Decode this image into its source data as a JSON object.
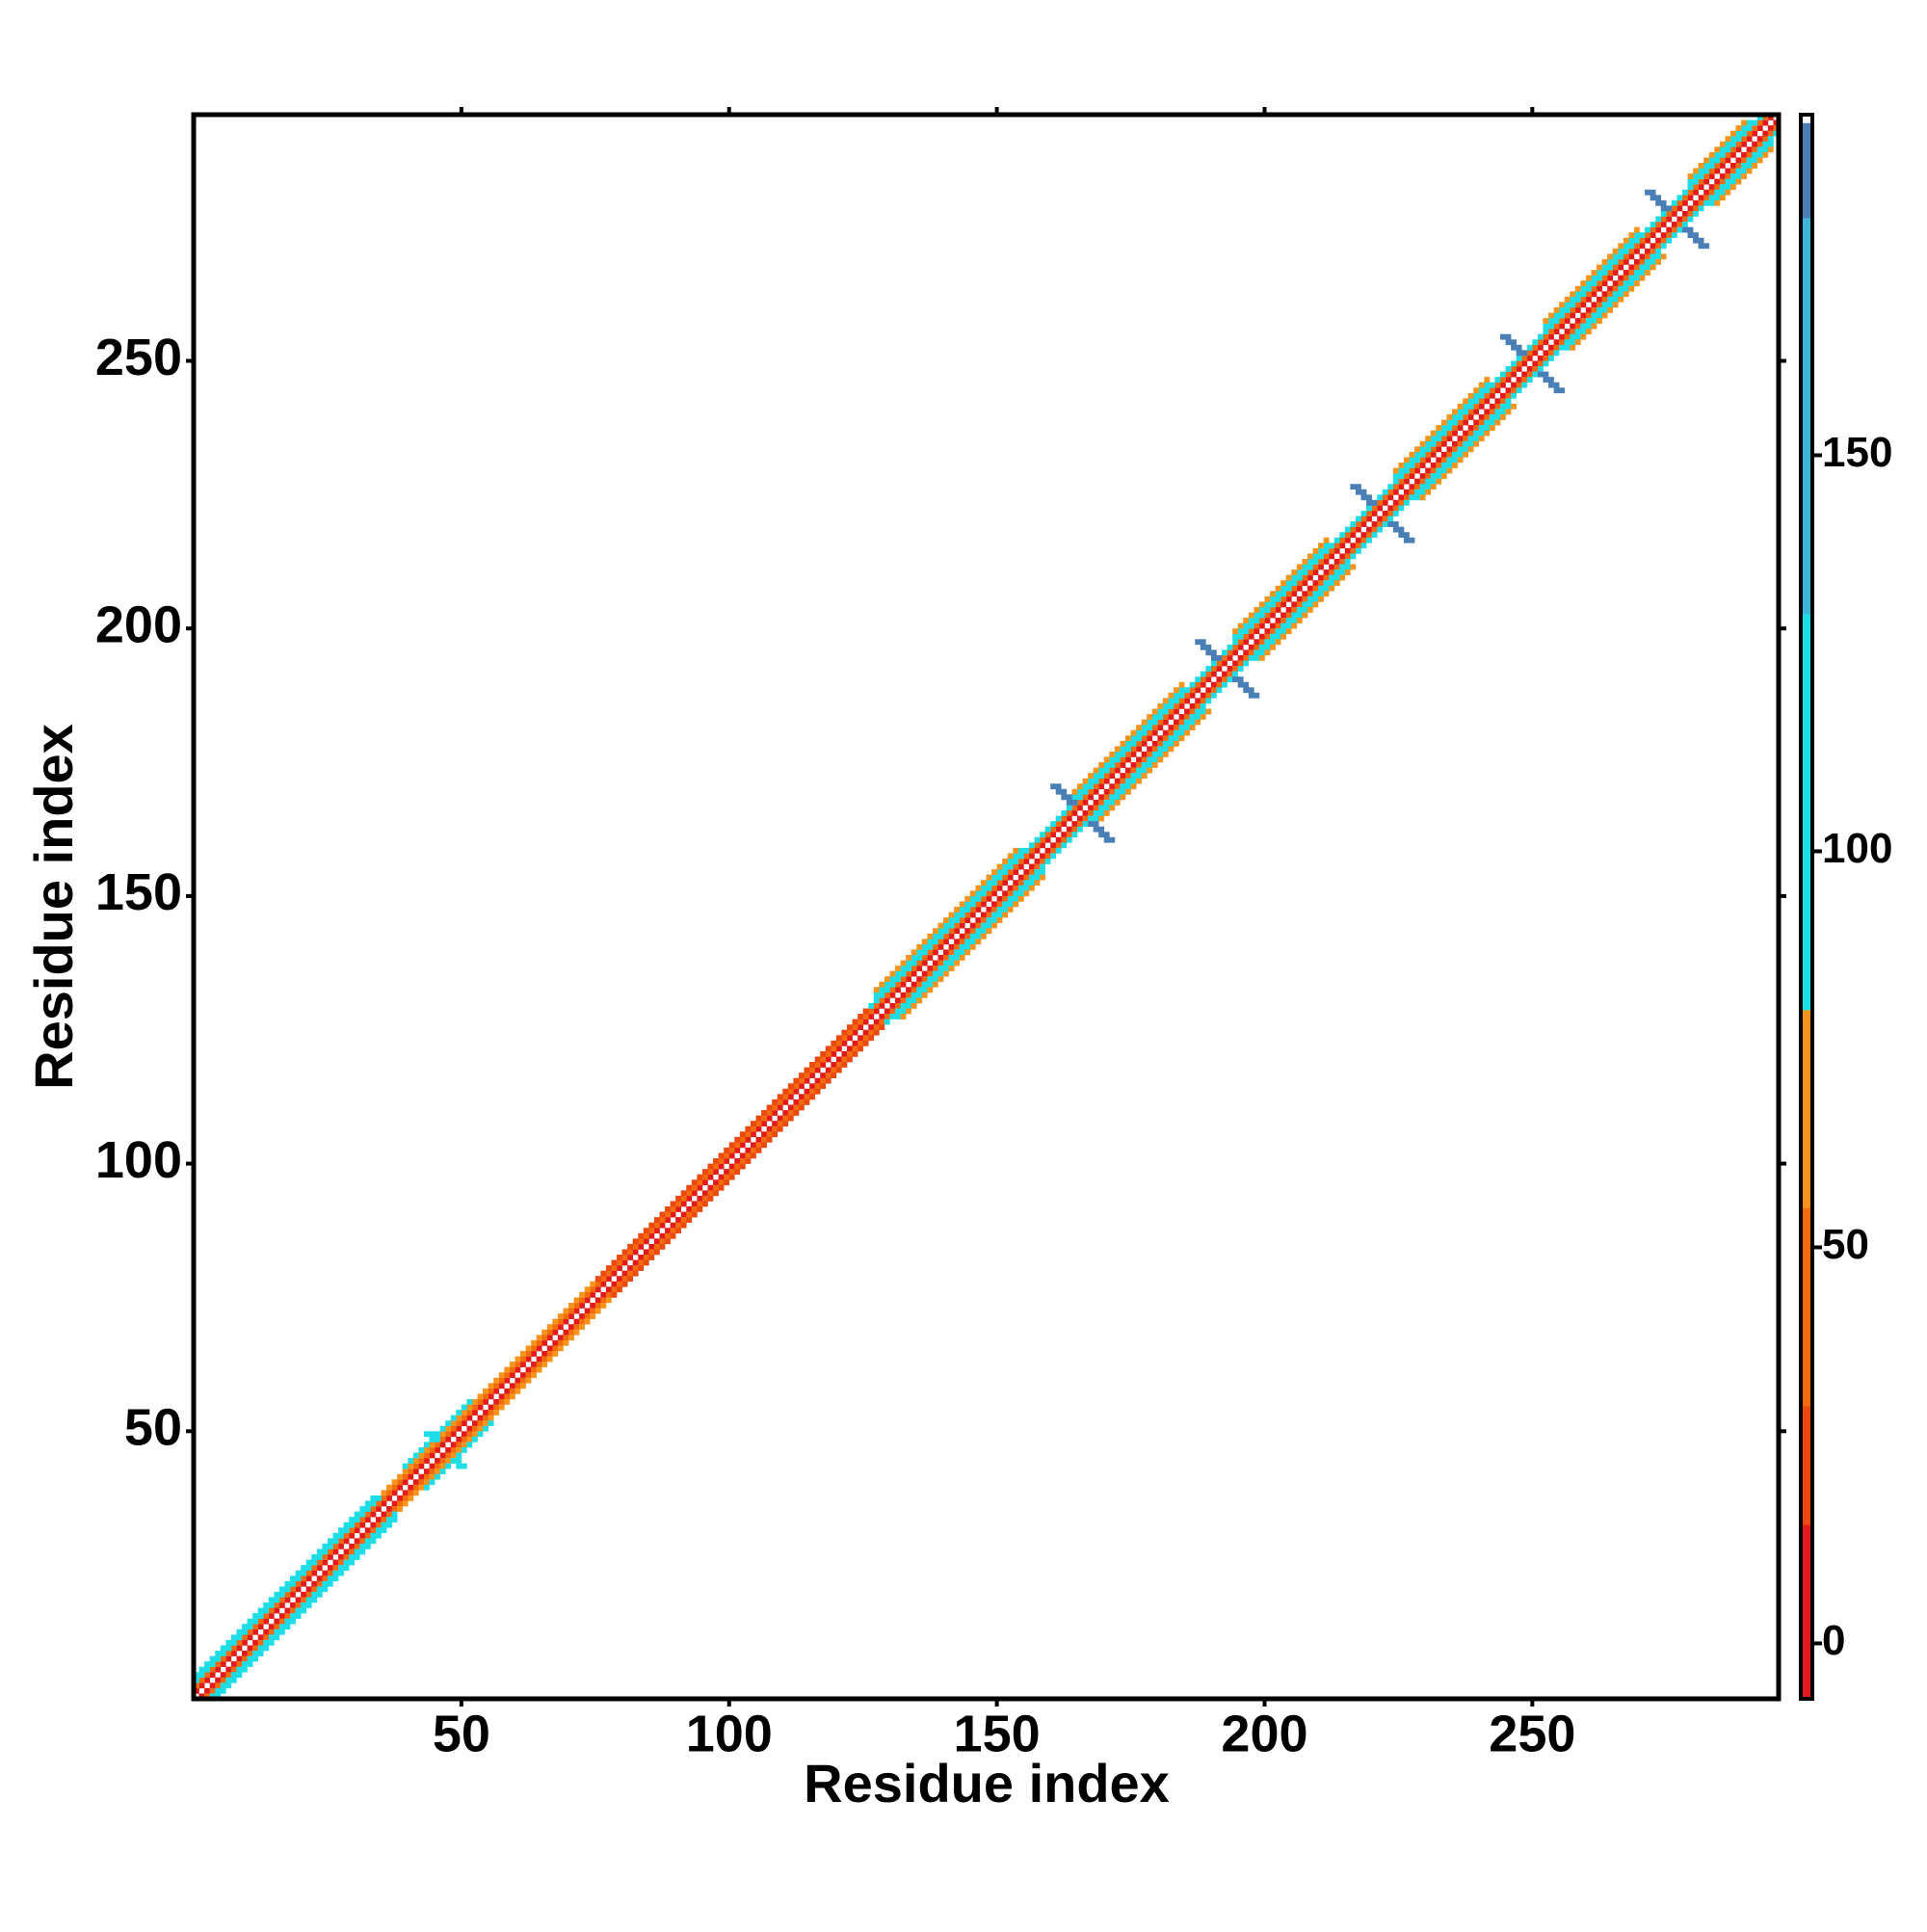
{
  "chart_data": {
    "type": "heatmap",
    "x_label": "Residue index",
    "y_label": "Residue index",
    "xlim": [
      0,
      296
    ],
    "ylim": [
      0,
      296
    ],
    "xticks": [
      50,
      100,
      150,
      200,
      250
    ],
    "yticks": [
      50,
      100,
      150,
      200,
      250
    ],
    "segments": [
      {
        "offset": 1,
        "start": 1,
        "end": 295,
        "value": 5
      },
      {
        "offset": 2,
        "start": 1,
        "end": 294,
        "value": 45
      },
      {
        "offset": 3,
        "start": 1,
        "end": 35,
        "value": 95
      },
      {
        "offset": 3,
        "start": 36,
        "end": 75,
        "value": 65
      },
      {
        "offset": 3,
        "start": 76,
        "end": 126,
        "value": 20
      },
      {
        "offset": 3,
        "start": 127,
        "end": 293,
        "value": 95
      },
      {
        "offset": 4,
        "start": 1,
        "end": 34,
        "value": 110
      },
      {
        "offset": 4,
        "start": 40,
        "end": 52,
        "value": 110
      },
      {
        "offset": 4,
        "start": 128,
        "end": 155,
        "value": 110
      },
      {
        "offset": 4,
        "start": 165,
        "end": 185,
        "value": 110
      },
      {
        "offset": 4,
        "start": 195,
        "end": 212,
        "value": 110
      },
      {
        "offset": 4,
        "start": 225,
        "end": 242,
        "value": 110
      },
      {
        "offset": 4,
        "start": 253,
        "end": 270,
        "value": 110
      },
      {
        "offset": 4,
        "start": 280,
        "end": 291,
        "value": 110
      },
      {
        "offset": 5,
        "start": 128,
        "end": 154,
        "value": 60
      },
      {
        "offset": 5,
        "start": 165,
        "end": 185,
        "value": 60
      },
      {
        "offset": 5,
        "start": 195,
        "end": 212,
        "value": 60
      },
      {
        "offset": 5,
        "start": 225,
        "end": 242,
        "value": 60
      },
      {
        "offset": 5,
        "start": 253,
        "end": 270,
        "value": 60
      },
      {
        "offset": 5,
        "start": 280,
        "end": 290,
        "value": 60
      }
    ],
    "crosses": [
      {
        "center": 47,
        "span": 3,
        "value": 100
      },
      {
        "center": 166,
        "span": 5,
        "value": 185
      },
      {
        "center": 193,
        "span": 5,
        "value": 185
      },
      {
        "center": 222,
        "span": 5,
        "value": 185
      },
      {
        "center": 250,
        "span": 5,
        "value": 185
      },
      {
        "center": 277,
        "span": 5,
        "value": 185
      }
    ],
    "colorbar": {
      "clim": [
        -7,
        193
      ],
      "ticks": [
        0,
        50,
        100,
        150
      ],
      "bins": [
        {
          "from": -7,
          "to": 15,
          "color": "#e31a1c"
        },
        {
          "from": 15,
          "to": 30,
          "color": "#ea4a10"
        },
        {
          "from": 30,
          "to": 55,
          "color": "#f26b0f"
        },
        {
          "from": 55,
          "to": 80,
          "color": "#f7941d"
        },
        {
          "from": 80,
          "to": 130,
          "color": "#1fdde6"
        },
        {
          "from": 130,
          "to": 180,
          "color": "#3fb3d9"
        },
        {
          "from": 180,
          "to": 192,
          "color": "#4a7fb5"
        },
        {
          "from": 192,
          "to": 193,
          "color": "#ffffff"
        }
      ]
    }
  }
}
